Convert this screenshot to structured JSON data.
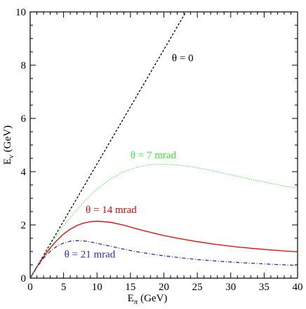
{
  "chart_data": {
    "type": "line",
    "xlabel": "E",
    "xlabel_sub": "π",
    "xlabel_unit": " (GeV)",
    "ylabel": "E",
    "ylabel_sub": "ν",
    "ylabel_unit": " (GeV)",
    "xlim": [
      0,
      40
    ],
    "ylim": [
      0,
      10
    ],
    "xticks": [
      0,
      5,
      10,
      15,
      20,
      25,
      30,
      35,
      40
    ],
    "yticks": [
      0,
      2,
      4,
      6,
      8,
      10
    ],
    "grid": false,
    "series": [
      {
        "name": "θ = 0",
        "color": "#000000",
        "style": "dashed",
        "x": [
          0,
          23.3
        ],
        "y": [
          0,
          10
        ]
      },
      {
        "name": "θ = 7 mrad",
        "color": "#33ee33",
        "style": "dotted",
        "x": [
          0,
          1,
          2,
          3,
          4,
          5,
          6,
          8,
          10,
          12,
          14,
          16,
          18,
          20,
          22,
          24,
          26,
          28,
          30,
          32,
          34,
          36,
          38,
          40
        ],
        "y": [
          0,
          0.43,
          0.85,
          1.25,
          1.62,
          1.96,
          2.28,
          2.86,
          3.35,
          3.73,
          4.0,
          4.17,
          4.26,
          4.28,
          4.25,
          4.19,
          4.1,
          3.99,
          3.88,
          3.77,
          3.66,
          3.56,
          3.46,
          3.38
        ]
      },
      {
        "name": "θ = 14 mrad",
        "color": "#ee0000",
        "style": "solid",
        "x": [
          0,
          1,
          2,
          3,
          4,
          5,
          6,
          7,
          8,
          9,
          10,
          12,
          14,
          16,
          18,
          20,
          22,
          25,
          28,
          31,
          34,
          37,
          40
        ],
        "y": [
          0,
          0.42,
          0.8,
          1.14,
          1.42,
          1.66,
          1.84,
          1.98,
          2.07,
          2.12,
          2.14,
          2.1,
          1.99,
          1.85,
          1.72,
          1.6,
          1.5,
          1.37,
          1.26,
          1.17,
          1.1,
          1.04,
          0.99
        ]
      },
      {
        "name": "θ = 21 mrad",
        "color": "#2a2acc",
        "style": "dashdot",
        "x": [
          0,
          1,
          2,
          3,
          4,
          5,
          6,
          7,
          8,
          9,
          10,
          12,
          14,
          16,
          18,
          20,
          22,
          25,
          28,
          31,
          34,
          37,
          40
        ],
        "y": [
          0,
          0.41,
          0.75,
          1.01,
          1.2,
          1.32,
          1.39,
          1.41,
          1.4,
          1.36,
          1.31,
          1.2,
          1.09,
          0.99,
          0.91,
          0.84,
          0.78,
          0.7,
          0.64,
          0.59,
          0.55,
          0.51,
          0.48
        ]
      }
    ],
    "annotations": [
      {
        "text": "θ = 0",
        "color": "#000000",
        "x": 21.2,
        "y": 8.15
      },
      {
        "text": "θ = 7 mrad",
        "color": "#33ee33",
        "x": 15.0,
        "y": 4.5
      },
      {
        "text": "θ = 14 mrad",
        "color": "#ee0000",
        "x": 8.3,
        "y": 2.45
      },
      {
        "text": "θ = 21 mrad",
        "color": "#2a2acc",
        "x": 5.1,
        "y": 0.78
      }
    ]
  }
}
